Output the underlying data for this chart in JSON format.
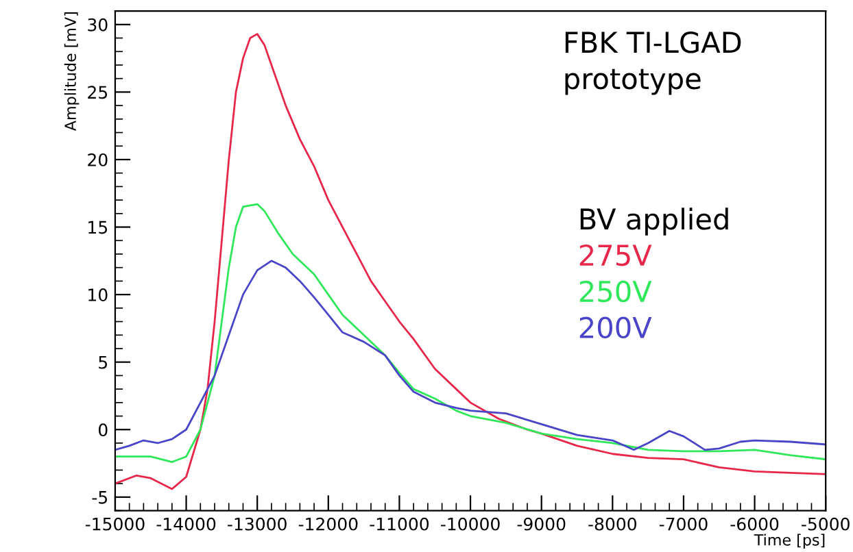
{
  "chart_data": {
    "type": "line",
    "xlabel": "Time [ps]",
    "ylabel": "Amplitude [mV]",
    "xlim": [
      -15000,
      -5000
    ],
    "ylim": [
      -6,
      31
    ],
    "xticks": [
      -15000,
      -14000,
      -13000,
      -12000,
      -11000,
      -10000,
      -9000,
      -8000,
      -7000,
      -6000,
      -5000
    ],
    "yticks": [
      -5,
      0,
      5,
      10,
      15,
      20,
      25,
      30
    ],
    "grid": false,
    "legend": "right",
    "legend_title": "BV applied",
    "annotations": [
      "FBK TI-LGAD\nprototype"
    ],
    "series": [
      {
        "name": "275V",
        "color": "#e8264a",
        "x": [
          -15000,
          -14700,
          -14500,
          -14200,
          -14000,
          -13800,
          -13700,
          -13600,
          -13500,
          -13400,
          -13300,
          -13200,
          -13100,
          -13000,
          -12900,
          -12800,
          -12600,
          -12400,
          -12200,
          -12000,
          -11800,
          -11600,
          -11400,
          -11200,
          -11000,
          -10800,
          -10500,
          -10200,
          -10000,
          -9600,
          -9200,
          -9000,
          -8500,
          -8000,
          -7500,
          -7000,
          -6500,
          -6000,
          -5500,
          -5000
        ],
        "values": [
          -4.0,
          -3.4,
          -3.6,
          -4.4,
          -3.5,
          0,
          3,
          8,
          14,
          20,
          25,
          27.5,
          29,
          29.3,
          28.5,
          27,
          24,
          21.5,
          19.5,
          17,
          15,
          13,
          11,
          9.5,
          8,
          6.7,
          4.5,
          3.0,
          2.0,
          0.8,
          0,
          -0.3,
          -1.2,
          -1.8,
          -2.1,
          -2.2,
          -2.8,
          -3.1,
          -3.2,
          -3.3
        ]
      },
      {
        "name": "250V",
        "color": "#2ee85a",
        "x": [
          -15000,
          -14500,
          -14200,
          -14000,
          -13800,
          -13600,
          -13500,
          -13400,
          -13300,
          -13200,
          -13000,
          -12900,
          -12700,
          -12500,
          -12200,
          -12000,
          -11800,
          -11500,
          -11200,
          -11000,
          -10800,
          -10500,
          -10200,
          -10000,
          -9500,
          -9000,
          -8500,
          -8000,
          -7500,
          -7000,
          -6500,
          -6000,
          -5500,
          -5000
        ],
        "values": [
          -2.0,
          -2.0,
          -2.4,
          -2.0,
          0,
          4,
          8,
          12,
          15,
          16.5,
          16.7,
          16.2,
          14.5,
          13,
          11.5,
          10,
          8.5,
          7,
          5.5,
          4.2,
          3,
          2.3,
          1.4,
          1.0,
          0.5,
          -0.3,
          -0.7,
          -1.0,
          -1.5,
          -1.6,
          -1.6,
          -1.5,
          -1.9,
          -2.2
        ]
      },
      {
        "name": "200V",
        "color": "#4a45c8",
        "x": [
          -15000,
          -14800,
          -14600,
          -14400,
          -14200,
          -14000,
          -13800,
          -13600,
          -13400,
          -13200,
          -13000,
          -12800,
          -12600,
          -12400,
          -12200,
          -12000,
          -11800,
          -11500,
          -11200,
          -11000,
          -10800,
          -10500,
          -10200,
          -10000,
          -9500,
          -9000,
          -8500,
          -8000,
          -7700,
          -7500,
          -7200,
          -7000,
          -6700,
          -6500,
          -6200,
          -6000,
          -5500,
          -5000
        ],
        "values": [
          -1.5,
          -1.2,
          -0.8,
          -1.0,
          -0.7,
          0,
          2.0,
          4.0,
          7.0,
          10,
          11.8,
          12.5,
          12,
          11,
          9.8,
          8.5,
          7.2,
          6.5,
          5.5,
          4.0,
          2.8,
          2.0,
          1.6,
          1.4,
          1.2,
          0.4,
          -0.4,
          -0.8,
          -1.5,
          -1.0,
          -0.1,
          -0.5,
          -1.5,
          -1.4,
          -0.9,
          -0.8,
          -0.9,
          -1.1
        ]
      }
    ]
  }
}
